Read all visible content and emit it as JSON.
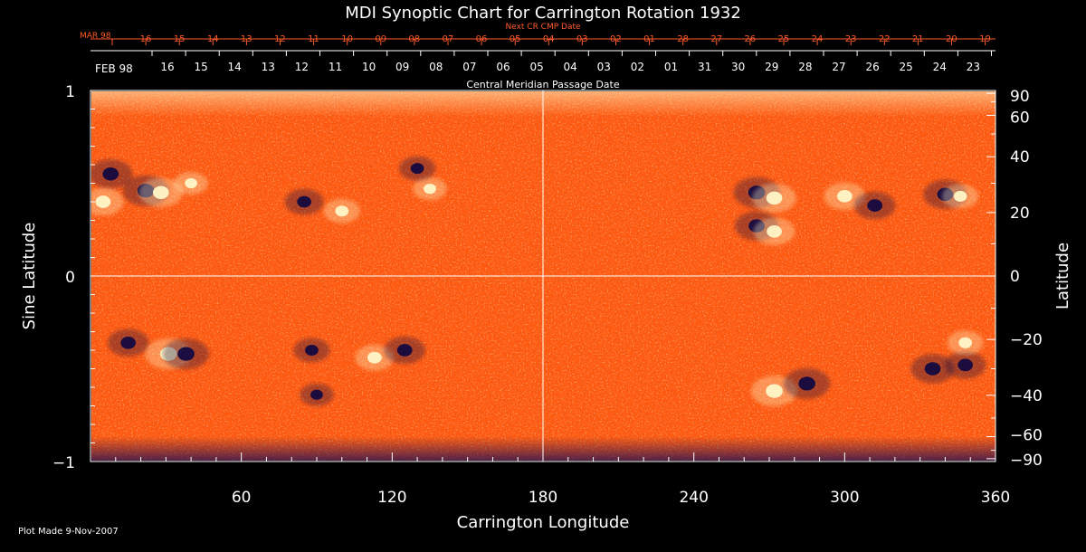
{
  "colors": {
    "background": "#000000",
    "text": "#ffffff",
    "cr_accent": "#ff5a2a",
    "map_base": "#ff5a10",
    "map_positive": "#fff7c8",
    "map_negative": "#140a40",
    "gridline": "#ffffff"
  },
  "chart_data": {
    "type": "heatmap",
    "title": "MDI Synoptic Chart for Carrington Rotation 1932",
    "xlabel": "Carrington Longitude",
    "ylabel_left": "Sine Latitude",
    "ylabel_right": "Latitude",
    "xlim": [
      0,
      360
    ],
    "ylim": [
      -1,
      1
    ],
    "x_ticks": [
      60,
      120,
      180,
      240,
      300,
      360
    ],
    "y_ticks_left": [
      {
        "value": 1,
        "label": "1"
      },
      {
        "value": 0,
        "label": "0"
      },
      {
        "value": -1,
        "label": "−1"
      }
    ],
    "y_ticks_right": [
      {
        "deg": 90,
        "label": "90"
      },
      {
        "deg": 60,
        "label": "60"
      },
      {
        "deg": 40,
        "label": "40"
      },
      {
        "deg": 20,
        "label": "20"
      },
      {
        "deg": 0,
        "label": "0"
      },
      {
        "deg": -20,
        "label": "−20"
      },
      {
        "deg": -40,
        "label": "−40"
      },
      {
        "deg": -60,
        "label": "−60"
      },
      {
        "deg": -90,
        "label": "−90"
      }
    ],
    "grid_lines": {
      "x": [
        180
      ],
      "y": [
        0
      ]
    },
    "top_axis_red": {
      "caption": "Next CR CMP Date",
      "month_label": "MAR 98",
      "labels": [
        "16",
        "15",
        "14",
        "13",
        "12",
        "11",
        "10",
        "09",
        "08",
        "07",
        "06",
        "05",
        "04",
        "03",
        "02",
        "01",
        "28",
        "27",
        "26",
        "25",
        "24",
        "23",
        "22",
        "21",
        "20",
        "19"
      ]
    },
    "top_axis_white": {
      "caption": "Central Meridian Passage Date",
      "month_label": "FEB 98",
      "labels": [
        "16",
        "15",
        "14",
        "13",
        "12",
        "11",
        "10",
        "09",
        "08",
        "07",
        "06",
        "05",
        "04",
        "03",
        "02",
        "01",
        "31",
        "30",
        "29",
        "28",
        "27",
        "26",
        "25",
        "24",
        "23"
      ]
    },
    "active_regions": [
      {
        "lon": 8,
        "sinlat": 0.55,
        "polarity": "negative",
        "strength": 0.9
      },
      {
        "lon": 5,
        "sinlat": 0.4,
        "polarity": "positive",
        "strength": 0.8
      },
      {
        "lon": 22,
        "sinlat": 0.46,
        "polarity": "negative",
        "strength": 1.0
      },
      {
        "lon": 28,
        "sinlat": 0.45,
        "polarity": "positive",
        "strength": 0.9
      },
      {
        "lon": 40,
        "sinlat": 0.5,
        "polarity": "positive",
        "strength": 0.5
      },
      {
        "lon": 85,
        "sinlat": 0.4,
        "polarity": "negative",
        "strength": 0.7
      },
      {
        "lon": 100,
        "sinlat": 0.35,
        "polarity": "positive",
        "strength": 0.6
      },
      {
        "lon": 135,
        "sinlat": 0.47,
        "polarity": "positive",
        "strength": 0.5
      },
      {
        "lon": 130,
        "sinlat": 0.58,
        "polarity": "negative",
        "strength": 0.6
      },
      {
        "lon": 265,
        "sinlat": 0.45,
        "polarity": "negative",
        "strength": 1.0
      },
      {
        "lon": 272,
        "sinlat": 0.42,
        "polarity": "positive",
        "strength": 0.9
      },
      {
        "lon": 265,
        "sinlat": 0.27,
        "polarity": "negative",
        "strength": 0.9
      },
      {
        "lon": 272,
        "sinlat": 0.24,
        "polarity": "positive",
        "strength": 0.8
      },
      {
        "lon": 300,
        "sinlat": 0.43,
        "polarity": "positive",
        "strength": 0.8
      },
      {
        "lon": 312,
        "sinlat": 0.38,
        "polarity": "negative",
        "strength": 0.8
      },
      {
        "lon": 340,
        "sinlat": 0.44,
        "polarity": "negative",
        "strength": 0.9
      },
      {
        "lon": 346,
        "sinlat": 0.43,
        "polarity": "positive",
        "strength": 0.6
      },
      {
        "lon": 15,
        "sinlat": -0.36,
        "polarity": "negative",
        "strength": 0.8
      },
      {
        "lon": 31,
        "sinlat": -0.42,
        "polarity": "positive",
        "strength": 1.0
      },
      {
        "lon": 38,
        "sinlat": -0.42,
        "polarity": "negative",
        "strength": 1.0
      },
      {
        "lon": 88,
        "sinlat": -0.4,
        "polarity": "negative",
        "strength": 0.6
      },
      {
        "lon": 113,
        "sinlat": -0.44,
        "polarity": "positive",
        "strength": 0.7
      },
      {
        "lon": 125,
        "sinlat": -0.4,
        "polarity": "negative",
        "strength": 0.8
      },
      {
        "lon": 90,
        "sinlat": -0.64,
        "polarity": "negative",
        "strength": 0.5
      },
      {
        "lon": 272,
        "sinlat": -0.62,
        "polarity": "positive",
        "strength": 1.0
      },
      {
        "lon": 285,
        "sinlat": -0.58,
        "polarity": "negative",
        "strength": 1.0
      },
      {
        "lon": 335,
        "sinlat": -0.5,
        "polarity": "negative",
        "strength": 0.9
      },
      {
        "lon": 348,
        "sinlat": -0.48,
        "polarity": "negative",
        "strength": 0.8
      },
      {
        "lon": 348,
        "sinlat": -0.36,
        "polarity": "positive",
        "strength": 0.6
      }
    ]
  },
  "footer": {
    "plot_made": "Plot Made  9-Nov-2007"
  }
}
